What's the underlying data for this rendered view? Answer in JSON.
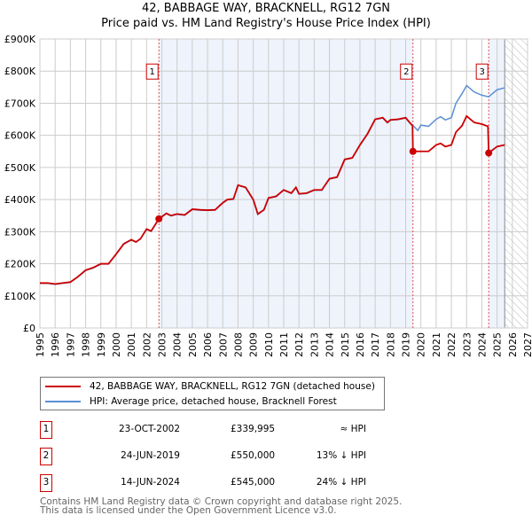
{
  "chart_data": {
    "type": "line",
    "title": "42, BABBAGE WAY, BRACKNELL, RG12 7GN",
    "subtitle": "Price paid vs. HM Land Registry's House Price Index (HPI)",
    "xlim": [
      1995,
      2027
    ],
    "ylim": [
      0,
      900000
    ],
    "x_ticks": [
      "1995",
      "1996",
      "1997",
      "1998",
      "1999",
      "2000",
      "2001",
      "2002",
      "2003",
      "2004",
      "2005",
      "2006",
      "2007",
      "2008",
      "2009",
      "2010",
      "2011",
      "2012",
      "2013",
      "2014",
      "2015",
      "2016",
      "2017",
      "2018",
      "2019",
      "2020",
      "2021",
      "2022",
      "2023",
      "2024",
      "2025",
      "2026",
      "2027"
    ],
    "y_ticks": [
      {
        "v": 0,
        "label": "£0"
      },
      {
        "v": 100000,
        "label": "£100K"
      },
      {
        "v": 200000,
        "label": "£200K"
      },
      {
        "v": 300000,
        "label": "£300K"
      },
      {
        "v": 400000,
        "label": "£400K"
      },
      {
        "v": 500000,
        "label": "£500K"
      },
      {
        "v": 600000,
        "label": "£600K"
      },
      {
        "v": 700000,
        "label": "£700K"
      },
      {
        "v": 800000,
        "label": "£800K"
      },
      {
        "v": 900000,
        "label": "£900K"
      }
    ],
    "grid": true,
    "forecast_from": 2025.5,
    "series": [
      {
        "name": "42, BABBAGE WAY, BRACKNELL, RG12 7GN (detached house)",
        "color": "#cc0000",
        "points": [
          [
            1995,
            140
          ],
          [
            1995.5,
            140
          ],
          [
            1996,
            137
          ],
          [
            1996.5,
            140
          ],
          [
            1997,
            143
          ],
          [
            1997.5,
            160
          ],
          [
            1998,
            180
          ],
          [
            1998.5,
            188
          ],
          [
            1999,
            200
          ],
          [
            1999.5,
            200
          ],
          [
            2000,
            230
          ],
          [
            2000.5,
            262
          ],
          [
            2001,
            275
          ],
          [
            2001.3,
            268
          ],
          [
            2001.6,
            278
          ],
          [
            2002,
            308
          ],
          [
            2002.3,
            302
          ],
          [
            2002.81,
            340
          ],
          [
            2003.3,
            357
          ],
          [
            2003.6,
            350
          ],
          [
            2004,
            355
          ],
          [
            2004.5,
            352
          ],
          [
            2005,
            370
          ],
          [
            2005.5,
            368
          ],
          [
            2006,
            367
          ],
          [
            2006.5,
            368
          ],
          [
            2007,
            390
          ],
          [
            2007.3,
            400
          ],
          [
            2007.7,
            402
          ],
          [
            2008,
            445
          ],
          [
            2008.5,
            438
          ],
          [
            2009,
            400
          ],
          [
            2009.3,
            355
          ],
          [
            2009.7,
            368
          ],
          [
            2010,
            405
          ],
          [
            2010.5,
            410
          ],
          [
            2011,
            430
          ],
          [
            2011.5,
            420
          ],
          [
            2011.8,
            438
          ],
          [
            2012,
            418
          ],
          [
            2012.5,
            420
          ],
          [
            2013,
            430
          ],
          [
            2013.5,
            430
          ],
          [
            2014,
            465
          ],
          [
            2014.5,
            470
          ],
          [
            2015,
            525
          ],
          [
            2015.5,
            530
          ],
          [
            2016,
            570
          ],
          [
            2016.5,
            605
          ],
          [
            2017,
            650
          ],
          [
            2017.5,
            655
          ],
          [
            2017.8,
            640
          ],
          [
            2018,
            648
          ],
          [
            2018.5,
            650
          ],
          [
            2019,
            655
          ],
          [
            2019.3,
            638
          ],
          [
            2019.45,
            630
          ],
          [
            2019.48,
            550
          ],
          [
            2020,
            550
          ],
          [
            2020.5,
            550
          ],
          [
            2021,
            570
          ],
          [
            2021.3,
            575
          ],
          [
            2021.6,
            565
          ],
          [
            2022,
            570
          ],
          [
            2022.3,
            610
          ],
          [
            2022.7,
            630
          ],
          [
            2023,
            660
          ],
          [
            2023.5,
            640
          ],
          [
            2024,
            635
          ],
          [
            2024.4,
            628
          ],
          [
            2024.45,
            545
          ],
          [
            2025,
            565
          ],
          [
            2025.5,
            570
          ]
        ]
      },
      {
        "name": "HPI: Average price, detached house, Bracknell Forest",
        "color": "#5b8fd6",
        "points": [
          [
            1995,
            139
          ],
          [
            1995.5,
            139
          ],
          [
            1996,
            136
          ],
          [
            1996.5,
            139
          ],
          [
            1997,
            142
          ],
          [
            1997.5,
            159
          ],
          [
            1998,
            179
          ],
          [
            1998.5,
            187
          ],
          [
            1999,
            199
          ],
          [
            1999.5,
            199
          ],
          [
            2000,
            229
          ],
          [
            2000.5,
            261
          ],
          [
            2001,
            274
          ],
          [
            2001.3,
            267
          ],
          [
            2001.6,
            277
          ],
          [
            2002,
            307
          ],
          [
            2002.3,
            301
          ],
          [
            2002.81,
            339
          ],
          [
            2003.3,
            356
          ],
          [
            2003.6,
            349
          ],
          [
            2004,
            354
          ],
          [
            2004.5,
            351
          ],
          [
            2005,
            369
          ],
          [
            2005.5,
            367
          ],
          [
            2006,
            366
          ],
          [
            2006.5,
            367
          ],
          [
            2007,
            389
          ],
          [
            2007.3,
            399
          ],
          [
            2007.7,
            401
          ],
          [
            2008,
            444
          ],
          [
            2008.5,
            437
          ],
          [
            2009,
            399
          ],
          [
            2009.3,
            354
          ],
          [
            2009.7,
            367
          ],
          [
            2010,
            404
          ],
          [
            2010.5,
            409
          ],
          [
            2011,
            429
          ],
          [
            2011.5,
            419
          ],
          [
            2011.8,
            437
          ],
          [
            2012,
            417
          ],
          [
            2012.5,
            419
          ],
          [
            2013,
            429
          ],
          [
            2013.5,
            429
          ],
          [
            2014,
            464
          ],
          [
            2014.5,
            469
          ],
          [
            2015,
            524
          ],
          [
            2015.5,
            529
          ],
          [
            2016,
            569
          ],
          [
            2016.5,
            604
          ],
          [
            2017,
            649
          ],
          [
            2017.5,
            654
          ],
          [
            2017.8,
            639
          ],
          [
            2018,
            647
          ],
          [
            2018.5,
            649
          ],
          [
            2019,
            654
          ],
          [
            2019.3,
            637
          ],
          [
            2019.5,
            630
          ],
          [
            2019.8,
            615
          ],
          [
            2020,
            632
          ],
          [
            2020.5,
            628
          ],
          [
            2021,
            650
          ],
          [
            2021.3,
            658
          ],
          [
            2021.6,
            648
          ],
          [
            2022,
            655
          ],
          [
            2022.3,
            700
          ],
          [
            2022.7,
            730
          ],
          [
            2023,
            755
          ],
          [
            2023.5,
            735
          ],
          [
            2024,
            725
          ],
          [
            2024.45,
            720
          ],
          [
            2025,
            742
          ],
          [
            2025.5,
            748
          ]
        ]
      }
    ],
    "sales": [
      {
        "id": "1",
        "x": 2002.81,
        "value": 339995,
        "date": "23-OCT-2002",
        "price": "£339,995",
        "hpi": "≈ HPI"
      },
      {
        "id": "2",
        "x": 2019.48,
        "value": 550000,
        "date": "24-JUN-2019",
        "price": "£550,000",
        "hpi": "13% ↓ HPI"
      },
      {
        "id": "3",
        "x": 2024.45,
        "value": 545000,
        "date": "14-JUN-2024",
        "price": "£545,000",
        "hpi": "24% ↓ HPI"
      }
    ]
  },
  "footer": {
    "line1": "Contains HM Land Registry data © Crown copyright and database right 2025.",
    "line2": "This data is licensed under the Open Government Licence v3.0."
  }
}
